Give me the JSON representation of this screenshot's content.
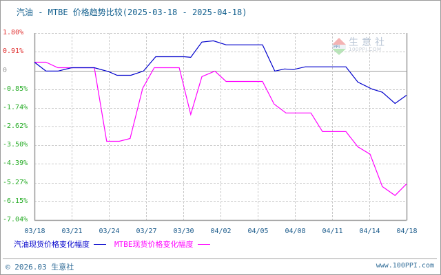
{
  "title": "汽油 - MTBE 价格趋势比较(2025-03-18 - 2025-04-18)",
  "watermark": {
    "brand": "生意社",
    "sub": "100PPI.COM",
    "logo": "PPI"
  },
  "footer": {
    "copyright": "© 2026.03 生意社",
    "site": "www.100PPI.com"
  },
  "colors": {
    "gasoline": "#0000cc",
    "mtbe": "#ff00ff",
    "positive_label": "#e03030",
    "negative_label": "#22aa22",
    "zero_label": "#999999",
    "grid": "#c8c8c8",
    "axis": "#999999"
  },
  "chart_data": {
    "type": "line",
    "title": "汽油 - MTBE 价格趋势比较(2025-03-18 - 2025-04-18)",
    "xlabel": "",
    "ylabel": "",
    "ylim": [
      -7.04,
      1.8
    ],
    "y_ticks": [
      "1.80%",
      "0.91%",
      "0",
      "-0.85%",
      "-1.74%",
      "-2.62%",
      "-3.50%",
      "-4.39%",
      "-5.27%",
      "-6.15%",
      "-7.04%"
    ],
    "x_ticks": [
      "03/18",
      "03/21",
      "03/24",
      "03/27",
      "03/30",
      "04/02",
      "04/05",
      "04/08",
      "04/11",
      "04/14",
      "04/18"
    ],
    "grid": true,
    "legend_position": "bottom",
    "series": [
      {
        "name": "汽油现货价格变化幅度",
        "color": "#0000cc",
        "points": [
          [
            0.0,
            0.42
          ],
          [
            0.031,
            0.0
          ],
          [
            0.063,
            0.0
          ],
          [
            0.1,
            0.16
          ],
          [
            0.161,
            0.16
          ],
          [
            0.2,
            -0.03
          ],
          [
            0.222,
            -0.2
          ],
          [
            0.259,
            -0.2
          ],
          [
            0.293,
            0.0
          ],
          [
            0.326,
            0.68
          ],
          [
            0.402,
            0.68
          ],
          [
            0.42,
            0.65
          ],
          [
            0.45,
            1.37
          ],
          [
            0.481,
            1.43
          ],
          [
            0.515,
            1.24
          ],
          [
            0.613,
            1.24
          ],
          [
            0.646,
            0.0
          ],
          [
            0.672,
            0.1
          ],
          [
            0.696,
            0.07
          ],
          [
            0.728,
            0.2
          ],
          [
            0.837,
            0.2
          ],
          [
            0.869,
            -0.52
          ],
          [
            0.907,
            -0.85
          ],
          [
            0.935,
            -1.0
          ],
          [
            0.969,
            -1.53
          ],
          [
            1.0,
            -1.14
          ]
        ]
      },
      {
        "name": "MTBE现货价格变化幅度",
        "color": "#ff00ff",
        "points": [
          [
            0.0,
            0.42
          ],
          [
            0.031,
            0.42
          ],
          [
            0.063,
            0.16
          ],
          [
            0.161,
            0.16
          ],
          [
            0.194,
            -3.32
          ],
          [
            0.228,
            -3.32
          ],
          [
            0.257,
            -3.19
          ],
          [
            0.291,
            -0.81
          ],
          [
            0.322,
            0.16
          ],
          [
            0.389,
            0.16
          ],
          [
            0.42,
            -2.05
          ],
          [
            0.45,
            -0.26
          ],
          [
            0.485,
            0.0
          ],
          [
            0.515,
            -0.49
          ],
          [
            0.613,
            -0.49
          ],
          [
            0.644,
            -1.56
          ],
          [
            0.676,
            -1.98
          ],
          [
            0.743,
            -1.98
          ],
          [
            0.774,
            -2.86
          ],
          [
            0.837,
            -2.86
          ],
          [
            0.869,
            -3.58
          ],
          [
            0.902,
            -3.93
          ],
          [
            0.935,
            -5.46
          ],
          [
            0.969,
            -5.88
          ],
          [
            1.0,
            -5.33
          ]
        ]
      }
    ]
  },
  "legend": {
    "gasoline": "汽油现货价格变化幅度",
    "mtbe": "MTBE现货价格变化幅度"
  }
}
